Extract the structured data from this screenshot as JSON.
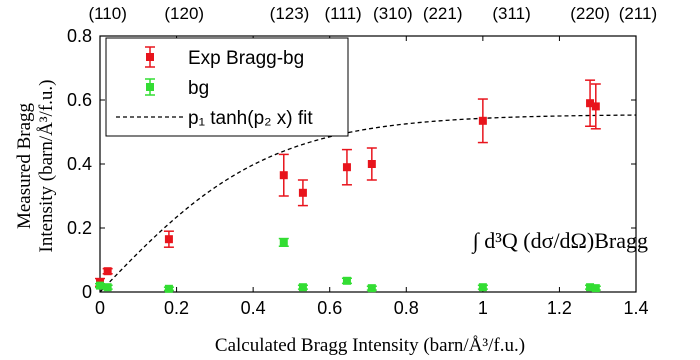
{
  "chart_data": {
    "type": "scatter",
    "xlabel": "Calculated Bragg Intensity (barn/Å³/f.u.)",
    "ylabel_line1": "Measured Bragg",
    "ylabel_line2": "Intensity (barn/Å³/f.u.)",
    "xlim": [
      0,
      1.4
    ],
    "ylim": [
      0,
      0.8
    ],
    "x_ticks": [
      0,
      0.2,
      0.4,
      0.6,
      0.8,
      1,
      1.2,
      1.4
    ],
    "x_tick_labels": [
      "0",
      "0.2",
      "0.4",
      "0.6",
      "0.8",
      "1",
      "1.2",
      "1.4"
    ],
    "y_ticks": [
      0,
      0.2,
      0.4,
      0.6,
      0.8
    ],
    "y_tick_labels": [
      "0",
      "0.2",
      "0.4",
      "0.6",
      "0.8"
    ],
    "top_axis_labels": [
      {
        "x": 0.02,
        "label": "(110)"
      },
      {
        "x": 0.22,
        "label": "(120)"
      },
      {
        "x": 0.495,
        "label": "(123)"
      },
      {
        "x": 0.635,
        "label": "(111)"
      },
      {
        "x": 0.765,
        "label": "(310)"
      },
      {
        "x": 0.895,
        "label": "(221)"
      },
      {
        "x": 1.075,
        "label": "(311)"
      },
      {
        "x": 1.28,
        "label": "(220)"
      },
      {
        "x": 1.405,
        "label": "(211)"
      }
    ],
    "legend_location": "top-left",
    "series": [
      {
        "name": "Exp Bragg-bg",
        "marker": "square",
        "color": "#e8141c",
        "points": [
          {
            "x": 0.0,
            "y": 0.03,
            "err": 0.012
          },
          {
            "x": 0.02,
            "y": 0.065,
            "err": 0.008
          },
          {
            "x": 0.18,
            "y": 0.165,
            "err": 0.025
          },
          {
            "x": 0.48,
            "y": 0.365,
            "err": 0.065
          },
          {
            "x": 0.53,
            "y": 0.31,
            "err": 0.04
          },
          {
            "x": 0.645,
            "y": 0.39,
            "err": 0.055
          },
          {
            "x": 0.71,
            "y": 0.4,
            "err": 0.05
          },
          {
            "x": 1.0,
            "y": 0.535,
            "err": 0.068
          },
          {
            "x": 1.28,
            "y": 0.59,
            "err": 0.072
          },
          {
            "x": 1.295,
            "y": 0.58,
            "err": 0.07
          }
        ]
      },
      {
        "name": "bg",
        "marker": "square",
        "color": "#33dd33",
        "points": [
          {
            "x": 0.0,
            "y": 0.02,
            "err": 0.006
          },
          {
            "x": 0.02,
            "y": 0.015,
            "err": 0.006
          },
          {
            "x": 0.18,
            "y": 0.01,
            "err": 0.005
          },
          {
            "x": 0.48,
            "y": 0.155,
            "err": 0.012
          },
          {
            "x": 0.53,
            "y": 0.015,
            "err": 0.006
          },
          {
            "x": 0.645,
            "y": 0.035,
            "err": 0.008
          },
          {
            "x": 0.71,
            "y": 0.012,
            "err": 0.006
          },
          {
            "x": 1.0,
            "y": 0.015,
            "err": 0.006
          },
          {
            "x": 1.28,
            "y": 0.015,
            "err": 0.006
          },
          {
            "x": 1.295,
            "y": 0.012,
            "err": 0.006
          }
        ]
      },
      {
        "name": "p₁ tanh(p₂ x) fit",
        "style": "dashed",
        "color": "#000000",
        "params": {
          "p1": 0.555,
          "p2": 2.25
        },
        "x_range": [
          0,
          1.4
        ]
      }
    ],
    "annotation": "∫ d³Q (dσ/dΩ)Bragg"
  }
}
